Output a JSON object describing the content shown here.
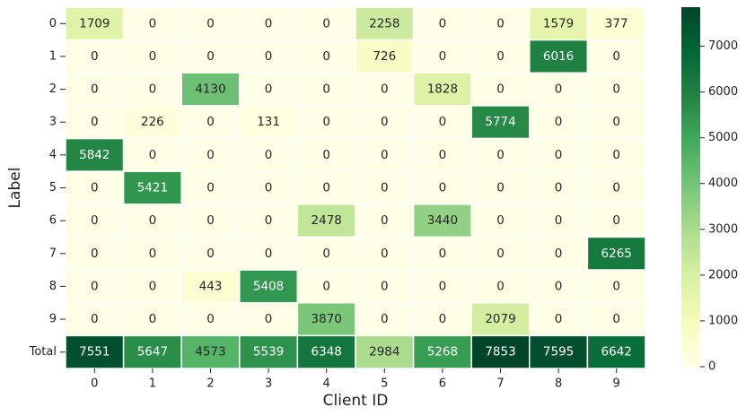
{
  "chart_data": {
    "type": "heatmap",
    "title": "",
    "xlabel": "Client ID",
    "ylabel": "Label",
    "x_categories": [
      "0",
      "1",
      "2",
      "3",
      "4",
      "5",
      "6",
      "7",
      "8",
      "9"
    ],
    "y_categories": [
      "0",
      "1",
      "2",
      "3",
      "4",
      "5",
      "6",
      "7",
      "8",
      "9",
      "Total"
    ],
    "values": [
      [
        1709,
        0,
        0,
        0,
        0,
        2258,
        0,
        0,
        1579,
        377
      ],
      [
        0,
        0,
        0,
        0,
        0,
        726,
        0,
        0,
        6016,
        0
      ],
      [
        0,
        0,
        4130,
        0,
        0,
        0,
        1828,
        0,
        0,
        0
      ],
      [
        0,
        226,
        0,
        131,
        0,
        0,
        0,
        5774,
        0,
        0
      ],
      [
        5842,
        0,
        0,
        0,
        0,
        0,
        0,
        0,
        0,
        0
      ],
      [
        0,
        5421,
        0,
        0,
        0,
        0,
        0,
        0,
        0,
        0
      ],
      [
        0,
        0,
        0,
        0,
        2478,
        0,
        3440,
        0,
        0,
        0
      ],
      [
        0,
        0,
        0,
        0,
        0,
        0,
        0,
        0,
        0,
        6265
      ],
      [
        0,
        0,
        443,
        5408,
        0,
        0,
        0,
        0,
        0,
        0
      ],
      [
        0,
        0,
        0,
        0,
        3870,
        0,
        0,
        2079,
        0,
        0
      ],
      [
        7551,
        5647,
        4573,
        5539,
        6348,
        2984,
        5268,
        7853,
        7595,
        6642
      ]
    ],
    "colorbar": {
      "min": 0,
      "max": 7853,
      "ticks": [
        0,
        1000,
        2000,
        3000,
        4000,
        5000,
        6000,
        7000
      ],
      "colormap": "YlGn"
    },
    "grid": false
  }
}
